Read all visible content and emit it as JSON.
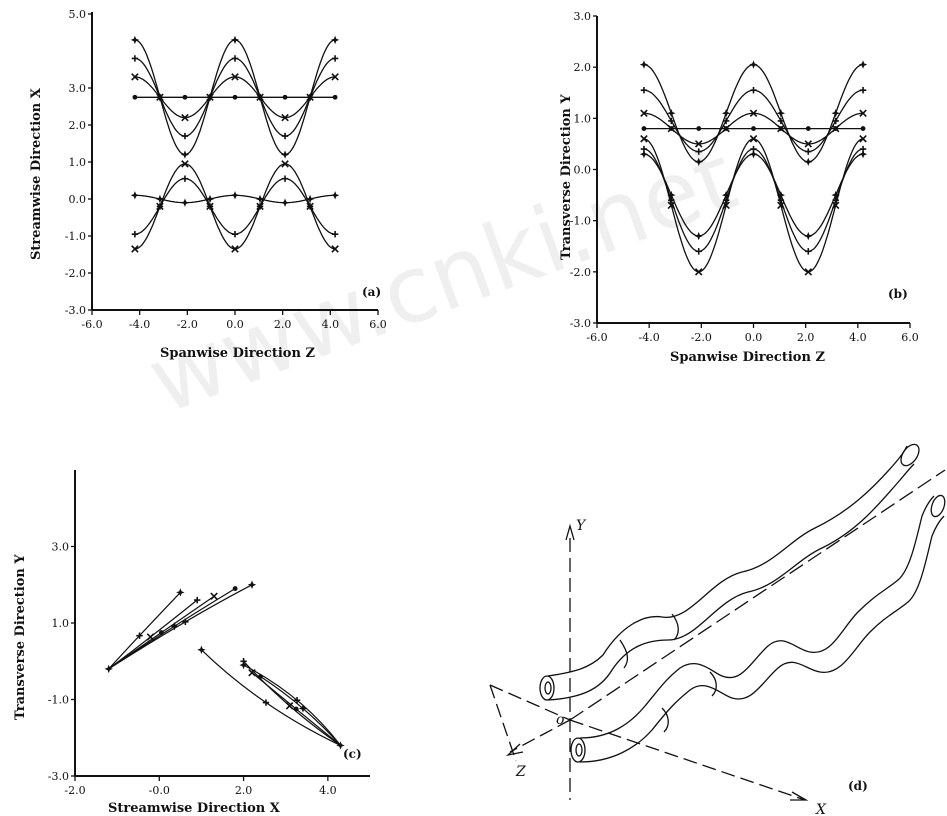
{
  "watermark": "www.cnki.net",
  "chart_data": [
    {
      "panel": "(a)",
      "type": "line",
      "xlabel": "Spanwise Direction Z",
      "ylabel": "Streamwise Direction X",
      "xlim": [
        -6.0,
        6.0
      ],
      "ylim": [
        -3.0,
        5.0
      ],
      "xticks": [
        "-6.0",
        "-4.0",
        "-2.0",
        "0.0",
        "2.0",
        "4.0",
        "6.0"
      ],
      "yticks": [
        "5.0",
        "3.0",
        "2.0",
        "1.0",
        "0.0",
        "-1.0",
        "-2.0",
        "-3.0"
      ],
      "ytick_values": [
        5.0,
        3.0,
        2.0,
        1.0,
        0.0,
        -1.0,
        -2.0,
        -3.0
      ],
      "curves": [
        {
          "center": 2.75,
          "amplitude": 1.55
        },
        {
          "center": 2.75,
          "amplitude": 1.05
        },
        {
          "center": 2.75,
          "amplitude": 0.55
        },
        {
          "center": 2.75,
          "amplitude": 0.0
        },
        {
          "center": 0.0,
          "amplitude": 0.1
        },
        {
          "center": -0.2,
          "amplitude": -0.75
        },
        {
          "center": -0.2,
          "amplitude": -1.15
        }
      ],
      "series_x_range": [
        -4.2,
        4.2
      ]
    },
    {
      "panel": "(b)",
      "type": "line",
      "xlabel": "Spanwise Direction Z",
      "ylabel": "Transverse Direction Y",
      "xlim": [
        -6.0,
        6.0
      ],
      "ylim": [
        -3.0,
        3.0
      ],
      "xticks": [
        "-6.0",
        "-4.0",
        "-2.0",
        "0.0",
        "2.0",
        "4.0",
        "6.0"
      ],
      "yticks": [
        "3.0",
        "2.0",
        "1.0",
        "0.0",
        "-1.0",
        "-2.0",
        "-3.0"
      ],
      "ytick_values": [
        3.0,
        2.0,
        1.0,
        0.0,
        -1.0,
        -2.0,
        -3.0
      ],
      "curves": [
        {
          "center": 1.1,
          "amplitude": 0.95
        },
        {
          "center": 0.95,
          "amplitude": 0.6
        },
        {
          "center": 0.8,
          "amplitude": 0.3
        },
        {
          "center": 0.8,
          "amplitude": 0.0
        },
        {
          "center": -0.5,
          "amplitude": 0.8
        },
        {
          "center": -0.6,
          "amplitude": 1.0
        },
        {
          "center": -0.7,
          "amplitude": 1.3
        }
      ],
      "series_x_range": [
        -4.2,
        4.2
      ]
    },
    {
      "panel": "(c)",
      "type": "line",
      "xlabel": "Streamwise Direction X",
      "ylabel": "Transverse Direction Y",
      "xlim": [
        -2.0,
        5.0
      ],
      "ylim": [
        -3.0,
        5.0
      ],
      "xticks": [
        "-2.0",
        "-0.0",
        "2.0",
        "4.0"
      ],
      "xtick_values": [
        -2.0,
        0.0,
        2.0,
        4.0
      ],
      "yticks": [
        "3.0",
        "1.0",
        "-1.0",
        "-3.0"
      ],
      "ytick_values": [
        3.0,
        1.0,
        -1.0,
        -3.0
      ],
      "groups": [
        {
          "start": [
            -1.2,
            -0.2
          ],
          "ends": [
            [
              0.5,
              1.8
            ],
            [
              0.9,
              1.6
            ],
            [
              1.3,
              1.7
            ],
            [
              1.8,
              1.9
            ],
            [
              2.2,
              2.0
            ]
          ]
        },
        {
          "start": [
            4.3,
            -2.2
          ],
          "ends": [
            [
              1.0,
              0.3
            ],
            [
              2.0,
              0.0
            ],
            [
              2.2,
              -0.3
            ],
            [
              2.4,
              -0.4
            ],
            [
              2.0,
              -0.1
            ]
          ]
        }
      ]
    },
    {
      "panel": "(d)",
      "type": "3d-sketch",
      "axis_labels": {
        "x": "X",
        "y": "Y",
        "z": "Z",
        "origin": "o"
      }
    }
  ]
}
